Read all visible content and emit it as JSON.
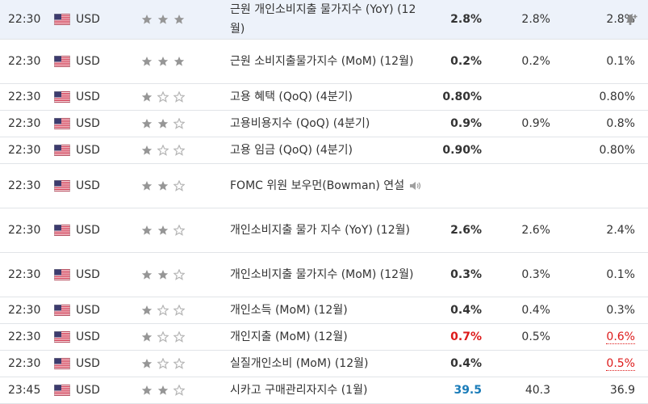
{
  "icons": {
    "flag": "us-flag-icon",
    "importance": "star-icon",
    "speech": "speaker-icon",
    "alert": "bell-plus-icon"
  },
  "colors": {
    "negative": "#dd1a1a",
    "positive": "#1a7cb9",
    "row_highlight": "#edf2fa",
    "star_full": "#969696"
  },
  "rows": [
    {
      "time": "22:30",
      "currency": "USD",
      "importance": 3,
      "event": "근원 개인소비지출 물가지수 (YoY) (12월)",
      "actual": "2.8%",
      "forecast": "2.8%",
      "previous": "2.8%",
      "highlight": true,
      "alert": true
    },
    {
      "time": "22:30",
      "currency": "USD",
      "importance": 3,
      "event": "근원 소비지출물가지수 (MoM) (12월)",
      "actual": "0.2%",
      "forecast": "0.2%",
      "previous": "0.1%"
    },
    {
      "time": "22:30",
      "currency": "USD",
      "importance": 1,
      "event": "고용 혜택 (QoQ) (4분기)",
      "actual": "0.80%",
      "forecast": "",
      "previous": "0.80%"
    },
    {
      "time": "22:30",
      "currency": "USD",
      "importance": 2,
      "event": "고용비용지수 (QoQ) (4분기)",
      "actual": "0.9%",
      "forecast": "0.9%",
      "previous": "0.8%"
    },
    {
      "time": "22:30",
      "currency": "USD",
      "importance": 1,
      "event": "고용 임금 (QoQ) (4분기)",
      "actual": "0.90%",
      "forecast": "",
      "previous": "0.80%"
    },
    {
      "time": "22:30",
      "currency": "USD",
      "importance": 2,
      "event": "FOMC 위원 보우먼(Bowman) 연설",
      "actual": "",
      "forecast": "",
      "previous": "",
      "speech": true
    },
    {
      "time": "22:30",
      "currency": "USD",
      "importance": 2,
      "event": "개인소비지출 물가 지수 (YoY) (12월)",
      "actual": "2.6%",
      "forecast": "2.6%",
      "previous": "2.4%"
    },
    {
      "time": "22:30",
      "currency": "USD",
      "importance": 2,
      "event": "개인소비지출 물가지수 (MoM) (12월)",
      "actual": "0.3%",
      "forecast": "0.3%",
      "previous": "0.1%"
    },
    {
      "time": "22:30",
      "currency": "USD",
      "importance": 1,
      "event": "개인소득 (MoM) (12월)",
      "actual": "0.4%",
      "forecast": "0.4%",
      "previous": "0.3%"
    },
    {
      "time": "22:30",
      "currency": "USD",
      "importance": 1,
      "event": "개인지출 (MoM) (12월)",
      "actual": "0.7%",
      "forecast": "0.5%",
      "previous": "0.6%",
      "actual_color": "red",
      "previous_color": "red",
      "previous_revised": true
    },
    {
      "time": "22:30",
      "currency": "USD",
      "importance": 1,
      "event": "실질개인소비 (MoM) (12월)",
      "actual": "0.4%",
      "forecast": "",
      "previous": "0.5%",
      "previous_color": "red",
      "previous_revised": true
    },
    {
      "time": "23:45",
      "currency": "USD",
      "importance": 2,
      "event": "시카고 구매관리자지수 (1월)",
      "actual": "39.5",
      "forecast": "40.3",
      "previous": "36.9",
      "actual_color": "blue"
    }
  ]
}
